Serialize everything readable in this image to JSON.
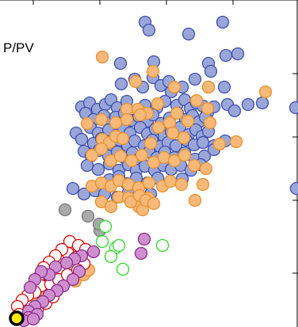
{
  "chart_data": {
    "type": "scatter",
    "annotation": "P/PV",
    "grid": false,
    "xlim": [
      0,
      376
    ],
    "ylim": [
      0,
      413
    ],
    "x_ticks": [
      42,
      126,
      210,
      294
    ],
    "y_ticks": [
      68,
      160,
      240,
      320
    ],
    "series": [
      {
        "color": "#9aa6d8",
        "edge": "#3e4fb0",
        "points": [
          [
            183,
            385
          ],
          [
            188,
            375
          ],
          [
            238,
            370
          ],
          [
            281,
            385
          ],
          [
            152,
            333
          ],
          [
            194,
            335
          ],
          [
            263,
            333
          ],
          [
            266,
            323
          ],
          [
            285,
            343
          ],
          [
            300,
            345
          ],
          [
            153,
            307
          ],
          [
            170,
            313
          ],
          [
            180,
            303
          ],
          [
            193,
            315
          ],
          [
            203,
            305
          ],
          [
            213,
            310
          ],
          [
            216,
            297
          ],
          [
            230,
            303
          ],
          [
            246,
            313
          ],
          [
            263,
            303
          ],
          [
            283,
            303
          ],
          [
            103,
            278
          ],
          [
            113,
            283
          ],
          [
            123,
            275
          ],
          [
            133,
            281
          ],
          [
            140,
            287
          ],
          [
            148,
            277
          ],
          [
            160,
            285
          ],
          [
            174,
            275
          ],
          [
            183,
            280
          ],
          [
            198,
            277
          ],
          [
            208,
            285
          ],
          [
            223,
            280
          ],
          [
            233,
            287
          ],
          [
            240,
            276
          ],
          [
            248,
            283
          ],
          [
            256,
            279
          ],
          [
            262,
            271
          ],
          [
            270,
            278
          ],
          [
            287,
            281
          ],
          [
            296,
            273
          ],
          [
            313,
            281
          ],
          [
            331,
            283
          ],
          [
            373,
            277
          ],
          [
            108,
            270
          ],
          [
            118,
            262
          ],
          [
            131,
            267
          ],
          [
            139,
            258
          ],
          [
            146,
            265
          ],
          [
            157,
            270
          ],
          [
            166,
            261
          ],
          [
            175,
            266
          ],
          [
            186,
            260
          ],
          [
            193,
            268
          ],
          [
            203,
            257
          ],
          [
            214,
            264
          ],
          [
            224,
            270
          ],
          [
            234,
            262
          ],
          [
            243,
            267
          ],
          [
            251,
            259
          ],
          [
            259,
            265
          ],
          [
            114,
            252
          ],
          [
            124,
            245
          ],
          [
            137,
            249
          ],
          [
            147,
            242
          ],
          [
            156,
            250
          ],
          [
            164,
            245
          ],
          [
            177,
            252
          ],
          [
            186,
            244
          ],
          [
            196,
            250
          ],
          [
            207,
            241
          ],
          [
            216,
            247
          ],
          [
            227,
            252
          ],
          [
            238,
            243
          ],
          [
            247,
            249
          ],
          [
            255,
            241
          ],
          [
            263,
            247
          ],
          [
            96,
            245
          ],
          [
            103,
            237
          ],
          [
            118,
            232
          ],
          [
            128,
            238
          ],
          [
            140,
            230
          ],
          [
            151,
            236
          ],
          [
            161,
            229
          ],
          [
            170,
            235
          ],
          [
            182,
            229
          ],
          [
            192,
            236
          ],
          [
            202,
            228
          ],
          [
            212,
            233
          ],
          [
            222,
            229
          ],
          [
            235,
            236
          ],
          [
            245,
            230
          ],
          [
            256,
            233
          ],
          [
            270,
            229
          ],
          [
            284,
            235
          ],
          [
            106,
            222
          ],
          [
            115,
            216
          ],
          [
            125,
            223
          ],
          [
            137,
            216
          ],
          [
            148,
            221
          ],
          [
            158,
            213
          ],
          [
            167,
            220
          ],
          [
            177,
            214
          ],
          [
            188,
            221
          ],
          [
            198,
            214
          ],
          [
            208,
            221
          ],
          [
            220,
            214
          ],
          [
            233,
            220
          ],
          [
            246,
            212
          ],
          [
            258,
            216
          ],
          [
            270,
            224
          ],
          [
            110,
            204
          ],
          [
            124,
            199
          ],
          [
            138,
            206
          ],
          [
            150,
            198
          ],
          [
            162,
            205
          ],
          [
            172,
            198
          ],
          [
            183,
            203
          ],
          [
            195,
            198
          ],
          [
            206,
            204
          ],
          [
            216,
            199
          ],
          [
            228,
            204
          ],
          [
            241,
            198
          ],
          [
            253,
            205
          ],
          [
            138,
            186
          ],
          [
            150,
            190
          ],
          [
            160,
            181
          ],
          [
            172,
            188
          ],
          [
            186,
            182
          ],
          [
            199,
            188
          ],
          [
            230,
            187
          ],
          [
            92,
            175
          ],
          [
            106,
            168
          ],
          [
            120,
            172
          ],
          [
            132,
            168
          ],
          [
            148,
            164
          ],
          [
            162,
            170
          ],
          [
            174,
            164
          ],
          [
            190,
            168
          ],
          [
            374,
            175
          ]
        ]
      },
      {
        "color": "#f6b97a",
        "edge": "#e8902c",
        "points": [
          [
            129,
            341
          ],
          [
            193,
            323
          ],
          [
            171,
            310
          ],
          [
            220,
            303
          ],
          [
            263,
            303
          ],
          [
            335,
            297
          ],
          [
            160,
            275
          ],
          [
            174,
            275
          ],
          [
            186,
            270
          ],
          [
            199,
            282
          ],
          [
            223,
            270
          ],
          [
            248,
            286
          ],
          [
            262,
            276
          ],
          [
            110,
            257
          ],
          [
            128,
            262
          ],
          [
            146,
            258
          ],
          [
            160,
            262
          ],
          [
            177,
            268
          ],
          [
            200,
            252
          ],
          [
            214,
            258
          ],
          [
            237,
            260
          ],
          [
            265,
            258
          ],
          [
            129,
            237
          ],
          [
            138,
            233
          ],
          [
            146,
            241
          ],
          [
            155,
            238
          ],
          [
            190,
            232
          ],
          [
            218,
            245
          ],
          [
            232,
            239
          ],
          [
            277,
            231
          ],
          [
            298,
            234
          ],
          [
            116,
            217
          ],
          [
            128,
            225
          ],
          [
            140,
            210
          ],
          [
            152,
            216
          ],
          [
            166,
            210
          ],
          [
            179,
            217
          ],
          [
            194,
            208
          ],
          [
            207,
            214
          ],
          [
            220,
            210
          ],
          [
            233,
            217
          ],
          [
            245,
            204
          ],
          [
            260,
            200
          ],
          [
            116,
            178
          ],
          [
            128,
            182
          ],
          [
            140,
            178
          ],
          [
            150,
            185
          ],
          [
            162,
            180
          ],
          [
            175,
            176
          ],
          [
            188,
            182
          ],
          [
            205,
            178
          ],
          [
            215,
            184
          ],
          [
            229,
            180
          ],
          [
            256,
            180
          ],
          [
            150,
            164
          ],
          [
            162,
            163
          ],
          [
            175,
            152
          ],
          [
            180,
            148
          ],
          [
            187,
            163
          ],
          [
            128,
            158
          ],
          [
            140,
            152
          ],
          [
            165,
            158
          ],
          [
            176,
            166
          ],
          [
            184,
            160
          ],
          [
            194,
            156
          ],
          [
            246,
            160
          ],
          [
            68,
            62
          ],
          [
            75,
            54
          ],
          [
            86,
            62
          ],
          [
            95,
            58
          ],
          [
            106,
            66
          ],
          [
            112,
            72
          ],
          [
            60,
            46
          ],
          [
            54,
            40
          ],
          [
            46,
            38
          ]
        ]
      },
      {
        "color": "#aaaaaa",
        "edge": "#777777",
        "points": [
          [
            82,
            148
          ],
          [
            111,
            140
          ],
          [
            126,
            122
          ],
          [
            125,
            130
          ]
        ]
      },
      {
        "color": "#ffffff",
        "edge": "#e00000",
        "points": [
          [
            88,
            108
          ],
          [
            99,
            103
          ],
          [
            108,
            98
          ],
          [
            86,
            93
          ],
          [
            96,
            88
          ],
          [
            106,
            80
          ],
          [
            78,
            98
          ],
          [
            70,
            90
          ],
          [
            62,
            82
          ],
          [
            55,
            75
          ],
          [
            60,
            66
          ],
          [
            48,
            62
          ],
          [
            52,
            52
          ],
          [
            64,
            54
          ],
          [
            74,
            60
          ],
          [
            85,
            66
          ],
          [
            98,
            72
          ],
          [
            44,
            44
          ],
          [
            35,
            40
          ],
          [
            28,
            34
          ],
          [
            22,
            26
          ],
          [
            36,
            18
          ],
          [
            48,
            24
          ],
          [
            58,
            30
          ],
          [
            67,
            38
          ],
          [
            24,
            16
          ]
        ]
      },
      {
        "color": "#cf8fcf",
        "edge": "#8a2c8a",
        "points": [
          [
            182,
            111
          ],
          [
            178,
            93
          ],
          [
            118,
            95
          ],
          [
            103,
            90
          ],
          [
            94,
            86
          ],
          [
            84,
            81
          ],
          [
            70,
            76
          ],
          [
            62,
            66
          ],
          [
            52,
            70
          ],
          [
            44,
            60
          ],
          [
            38,
            50
          ],
          [
            100,
            70
          ],
          [
            92,
            60
          ],
          [
            80,
            52
          ],
          [
            72,
            46
          ],
          [
            62,
            40
          ],
          [
            54,
            32
          ],
          [
            44,
            26
          ],
          [
            36,
            20
          ],
          [
            47,
            16
          ],
          [
            36,
            12
          ],
          [
            30,
            8
          ],
          [
            42,
            10
          ]
        ]
      },
      {
        "color": "#ffffff",
        "edge": "#22dd22",
        "points": [
          [
            133,
            127
          ],
          [
            129,
            108
          ],
          [
            146,
            100
          ],
          [
            140,
            89
          ],
          [
            150,
            103
          ],
          [
            155,
            73
          ],
          [
            205,
            103
          ]
        ]
      },
      {
        "color": "#ffee00",
        "edge": "#000000",
        "points": [
          [
            21,
            11
          ]
        ]
      }
    ]
  }
}
